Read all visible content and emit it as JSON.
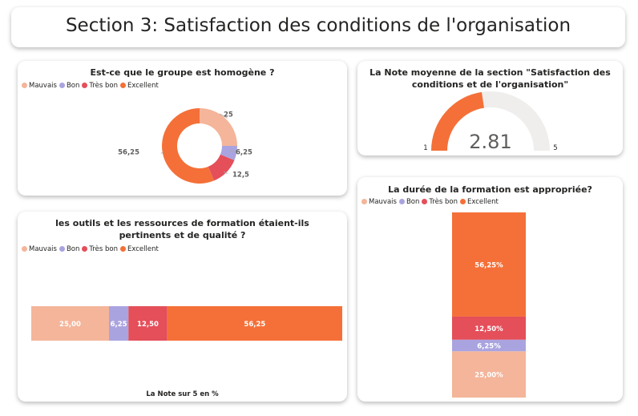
{
  "page_title": "Section 3: Satisfaction des conditions de l'organisation",
  "colors": {
    "mauvais": "#F4B59A",
    "bon": "#A9A4E0",
    "tres_bon": "#E44F5A",
    "excellent": "#F47038",
    "gauge_track": "#EFEEEC",
    "text": "#252423"
  },
  "legend_labels": [
    "Mauvais",
    "Bon",
    "Très bon",
    "Excellent"
  ],
  "chart_data": [
    {
      "type": "pie",
      "variant": "donut",
      "title": "Est-ce que le groupe est homogène ?",
      "categories": [
        "Mauvais",
        "Bon",
        "Très bon",
        "Excellent"
      ],
      "values": [
        25,
        6.25,
        12.5,
        56.25
      ],
      "data_labels": [
        "25",
        "6,25",
        "12,5",
        "56,25"
      ],
      "legend_position": "top-left"
    },
    {
      "type": "gauge",
      "title": "La Note moyenne de la section \"Satisfaction des conditions et de l'organisation\"",
      "value": 2.81,
      "value_label": "2.81",
      "min": 1,
      "max": 5,
      "min_label": "1",
      "max_label": "5"
    },
    {
      "type": "bar",
      "orientation": "horizontal",
      "stacked": "100%",
      "title": "les outils et les ressources de formation étaient-ils pertinents et de qualité ?",
      "xlabel": "La Note sur 5 en %",
      "categories": [
        "Mauvais",
        "Bon",
        "Très bon",
        "Excellent"
      ],
      "values": [
        25.0,
        6.25,
        12.5,
        56.25
      ],
      "data_labels": [
        "25,00",
        "6,25",
        "12,50",
        "56,25"
      ],
      "legend_position": "top-left"
    },
    {
      "type": "bar",
      "orientation": "vertical",
      "stacked": "100%",
      "title": "La durée de la formation est appropriée?",
      "categories": [
        "Mauvais",
        "Bon",
        "Très bon",
        "Excellent"
      ],
      "values": [
        25.0,
        6.25,
        12.5,
        56.25
      ],
      "data_labels": [
        "25,00%",
        "6,25%",
        "12,50%",
        "56,25%"
      ],
      "legend_position": "top-left"
    }
  ]
}
